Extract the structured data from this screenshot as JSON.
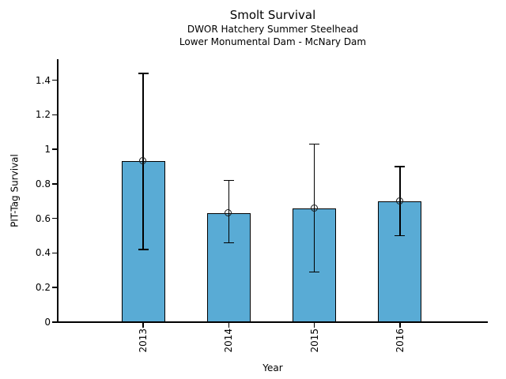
{
  "chart_data": {
    "type": "bar",
    "title": "Smolt Survival",
    "subtitle": [
      "DWOR Hatchery Summer Steelhead",
      "Lower Monumental Dam - McNary Dam"
    ],
    "xlabel": "Year",
    "ylabel": "PIT-Tag Survival",
    "categories": [
      "2013",
      "2014",
      "2015",
      "2016"
    ],
    "values": [
      0.93,
      0.63,
      0.66,
      0.7
    ],
    "error_upper": [
      1.44,
      0.82,
      1.03,
      0.9
    ],
    "error_lower": [
      0.42,
      0.46,
      0.29,
      0.5
    ],
    "yticks": [
      0,
      0.2,
      0.4,
      0.6,
      0.8,
      1.0,
      1.2,
      1.4
    ],
    "ytick_labels": [
      "0",
      "0.2",
      "0.4",
      "0.6",
      "0.8",
      "1",
      "1.2",
      "1.4"
    ],
    "ylim": [
      0,
      1.52
    ],
    "bar_color": "#59ABD5",
    "bar_edge_color": "#000000",
    "error_color": "#000000",
    "marker": "open-circle",
    "x_tick_rotation_deg": 90,
    "grid": false,
    "legend": null
  }
}
